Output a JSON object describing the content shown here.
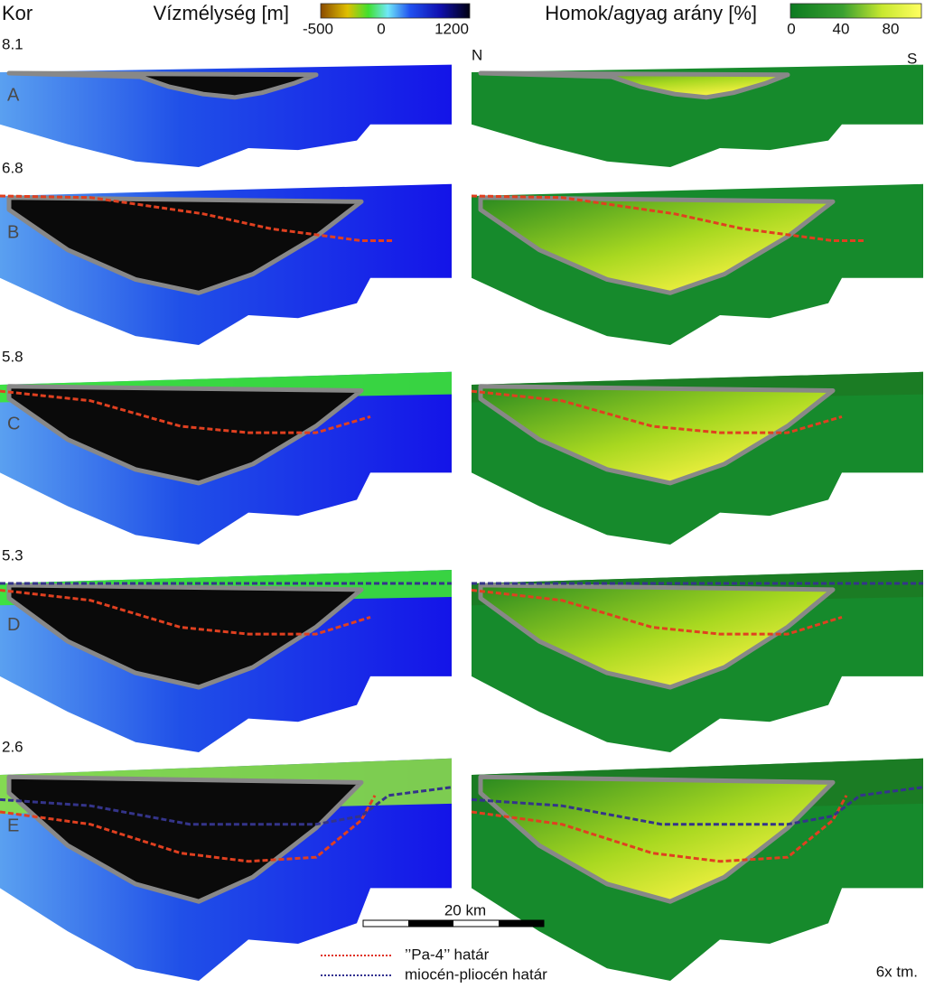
{
  "header": {
    "age_label": "Kor",
    "depth_title": "Vízmélység [m]",
    "depth_ticks": [
      -500,
      0,
      1200
    ],
    "ratio_title": "Homok/agyag arány  [%]",
    "ratio_ticks": [
      0,
      40,
      80
    ]
  },
  "orientation": {
    "north": "N",
    "south": "S"
  },
  "panels": [
    {
      "age": "8.1",
      "label": "A"
    },
    {
      "age": "6.8",
      "label": "B"
    },
    {
      "age": "5.8",
      "label": "C"
    },
    {
      "age": "5.3",
      "label": "D"
    },
    {
      "age": "2.6",
      "label": "E"
    }
  ],
  "scale_bar": {
    "label": "20 km"
  },
  "legend": [
    {
      "label": "’’Pa-4’’ határ"
    },
    {
      "label": "miocén-pliocén határ"
    }
  ],
  "note": "6x tm."
}
